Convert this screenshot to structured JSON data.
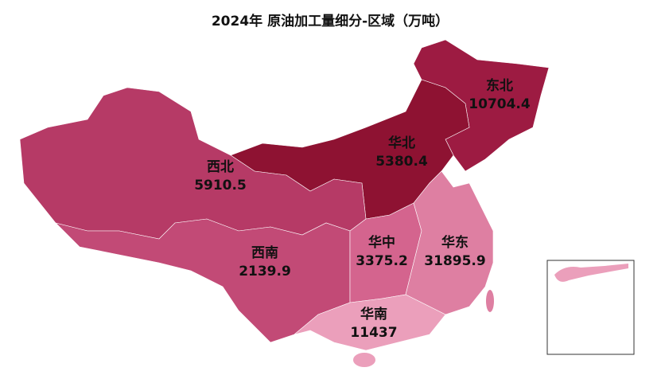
{
  "chart_data": {
    "type": "map",
    "title": "2024年 原油加工量细分-区域（万吨）",
    "categories": [
      "东北",
      "华北",
      "西北",
      "西南",
      "华中",
      "华东",
      "华南"
    ],
    "values": [
      10704.4,
      5380.4,
      5910.5,
      2139.9,
      3375.2,
      31895.9,
      11437
    ],
    "colors": [
      "#9d1b42",
      "#8e1232",
      "#b63a66",
      "#c24a76",
      "#d4648e",
      "#de7fa2",
      "#eb9fbb"
    ]
  }
}
